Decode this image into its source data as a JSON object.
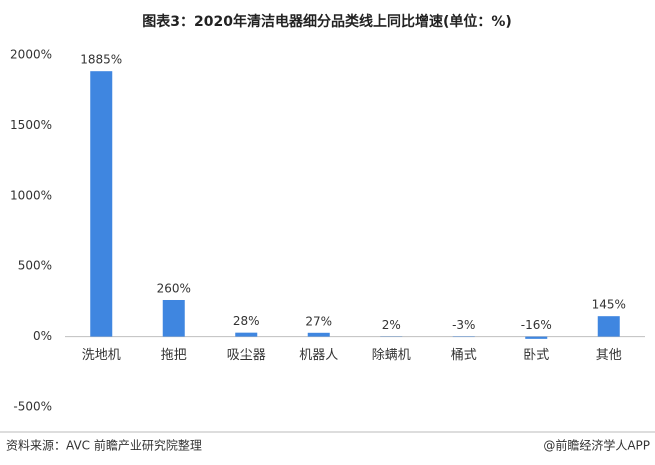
{
  "chart_data": {
    "type": "bar",
    "title": "图表3：2020年清洁电器细分品类线上同比增速(单位：%)",
    "categories": [
      "洗地机",
      "拖把",
      "吸尘器",
      "机器人",
      "除螨机",
      "桶式",
      "卧式",
      "其他"
    ],
    "values": [
      1885,
      260,
      28,
      27,
      2,
      -3,
      -16,
      145
    ],
    "value_labels": [
      "1885%",
      "260%",
      "28%",
      "27%",
      "2%",
      "-3%",
      "-16%",
      "145%"
    ],
    "color": "#3f86e0",
    "ylim": [
      -500,
      2000
    ],
    "yticks": [
      {
        "value": -500,
        "label": "-500%"
      },
      {
        "value": 0,
        "label": "0%"
      },
      {
        "value": 500,
        "label": "500%"
      },
      {
        "value": 1000,
        "label": "1000%"
      },
      {
        "value": 1500,
        "label": "1500%"
      },
      {
        "value": 2000,
        "label": "2000%"
      }
    ],
    "grid": false,
    "source": "资料来源：AVC 前瞻产业研究院整理",
    "credit": "@前瞻经济学人APP"
  }
}
